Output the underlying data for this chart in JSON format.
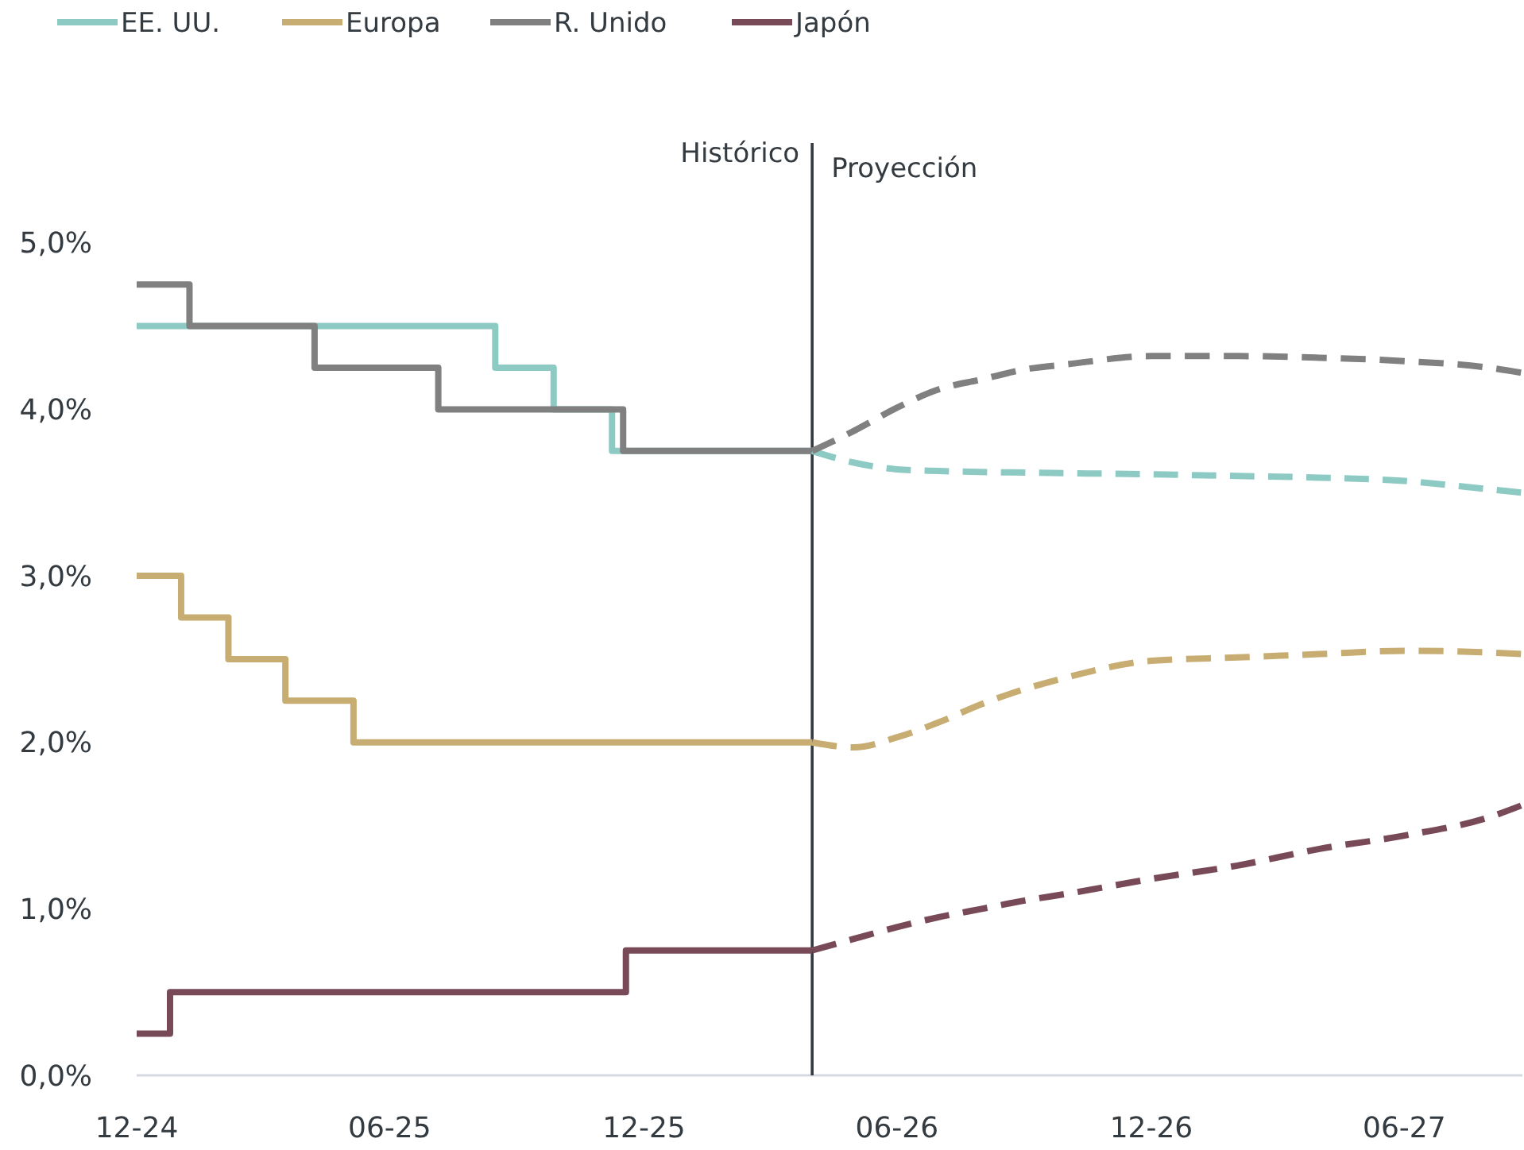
{
  "chart_data": {
    "type": "line",
    "legend": "top left",
    "grid": false,
    "xlim": [
      "2024-12-01",
      "2027-08-25"
    ],
    "xticks": [
      {
        "value": "2024-12-01",
        "label": "12-24"
      },
      {
        "value": "2025-06-01",
        "label": "06-25"
      },
      {
        "value": "2025-12-01",
        "label": "12-25"
      },
      {
        "value": "2026-06-01",
        "label": "06-26"
      },
      {
        "value": "2026-12-01",
        "label": "12-26"
      },
      {
        "value": "2027-06-01",
        "label": "06-27"
      }
    ],
    "ylim": [
      0,
      5.6
    ],
    "yticks": [
      {
        "value": 0,
        "label": "0,0%"
      },
      {
        "value": 1,
        "label": "1,0%"
      },
      {
        "value": 2,
        "label": "2,0%"
      },
      {
        "value": 3,
        "label": "3,0%"
      },
      {
        "value": 4,
        "label": "4,0%"
      },
      {
        "value": 5,
        "label": "5,0%"
      }
    ],
    "ref_lines": [
      {
        "axis": "x",
        "value": "2026-04-01",
        "label": "Histórico",
        "color": "#333a40"
      }
    ],
    "annotations": [
      {
        "text": "Proyección",
        "x": "2026-04-01",
        "y": 5.45
      }
    ],
    "series": [
      {
        "name": "EE. UU.",
        "type": "step",
        "line_style": "solid",
        "color": "#8ecac4",
        "x": [
          "2024-12-01",
          "2025-08-16",
          "2025-09-27",
          "2025-11-08",
          "2026-04-01"
        ],
        "values": [
          4.5,
          4.25,
          4.0,
          3.75,
          3.75
        ]
      },
      {
        "name": "Europa",
        "type": "step",
        "line_style": "solid",
        "color": "#c8ad72",
        "x": [
          "2024-12-01",
          "2025-01-02",
          "2025-02-05",
          "2025-03-18",
          "2025-05-06",
          "2026-04-01"
        ],
        "values": [
          3.0,
          2.75,
          2.5,
          2.25,
          2.0,
          2.0
        ]
      },
      {
        "name": "R. Unido",
        "type": "step",
        "line_style": "solid",
        "color": "#808080",
        "x": [
          "2024-12-01",
          "2025-01-08",
          "2025-04-08",
          "2025-07-06",
          "2025-11-16",
          "2026-04-01"
        ],
        "values": [
          4.75,
          4.5,
          4.25,
          4.0,
          3.75,
          3.75
        ]
      },
      {
        "name": "Japón",
        "type": "step",
        "line_style": "solid",
        "color": "#784a57",
        "x": [
          "2024-12-01",
          "2024-12-25",
          "2025-11-18",
          "2026-04-01"
        ],
        "values": [
          0.25,
          0.5,
          0.75,
          0.75
        ]
      },
      {
        "type": "line",
        "line_style": "dashed",
        "color": "#8ecac4",
        "x": [
          "2026-04-01",
          "2026-05-01",
          "2026-06-01",
          "2026-07-01",
          "2026-09-01",
          "2026-12-01",
          "2027-02-01",
          "2027-04-01",
          "2027-06-01",
          "2027-08-01",
          "2027-08-24"
        ],
        "values": [
          3.75,
          3.68,
          3.64,
          3.63,
          3.62,
          3.61,
          3.6,
          3.59,
          3.57,
          3.52,
          3.5
        ]
      },
      {
        "type": "line",
        "line_style": "dashed",
        "color": "#c8ad72",
        "x": [
          "2026-04-01",
          "2026-05-01",
          "2026-06-01",
          "2026-07-01",
          "2026-08-01",
          "2026-09-01",
          "2026-10-01",
          "2026-12-01",
          "2027-02-01",
          "2027-04-01",
          "2027-06-01",
          "2027-08-01",
          "2027-08-24"
        ],
        "values": [
          2.0,
          1.97,
          2.03,
          2.12,
          2.23,
          2.32,
          2.39,
          2.49,
          2.51,
          2.53,
          2.55,
          2.54,
          2.53
        ]
      },
      {
        "type": "line",
        "line_style": "dashed",
        "color": "#808080",
        "x": [
          "2026-04-01",
          "2026-05-01",
          "2026-06-01",
          "2026-07-01",
          "2026-08-01",
          "2026-09-01",
          "2026-10-01",
          "2026-12-01",
          "2027-02-01",
          "2027-04-01",
          "2027-06-01",
          "2027-08-01",
          "2027-08-24"
        ],
        "values": [
          3.75,
          3.87,
          4.01,
          4.12,
          4.18,
          4.24,
          4.27,
          4.32,
          4.32,
          4.31,
          4.29,
          4.25,
          4.22
        ]
      },
      {
        "type": "line",
        "line_style": "dashed",
        "color": "#784a57",
        "x": [
          "2026-04-01",
          "2026-05-01",
          "2026-06-01",
          "2026-07-01",
          "2026-08-01",
          "2026-09-01",
          "2026-10-01",
          "2026-12-01",
          "2027-02-01",
          "2027-04-01",
          "2027-06-01",
          "2027-08-01",
          "2027-08-24"
        ],
        "values": [
          0.75,
          0.82,
          0.89,
          0.95,
          1.0,
          1.05,
          1.09,
          1.18,
          1.26,
          1.36,
          1.44,
          1.55,
          1.62
        ]
      }
    ]
  }
}
